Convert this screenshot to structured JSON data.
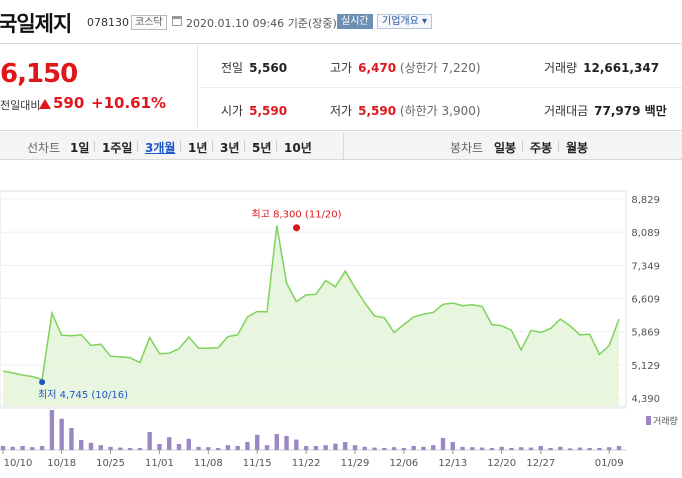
{
  "header": {
    "name": "국일제지",
    "code": "078130",
    "market": "코스닥",
    "datetime": "2020.01.10 09:46",
    "basis": "기준(장중)",
    "realtime": "실시간",
    "company_info": "기업개요 ▾"
  },
  "price": {
    "current": "6,150",
    "change_label": "전일대비",
    "change": "590",
    "change_pct": "+10.61%"
  },
  "stats": {
    "prev_label": "전일",
    "prev": "5,560",
    "high_label": "고가",
    "high": "6,470",
    "upper_limit": "(상한가 7,220)",
    "volume_label": "거래량",
    "volume": "12,661,347",
    "open_label": "시가",
    "open": "5,590",
    "low_label": "저가",
    "low": "5,590",
    "lower_limit": "(하한가 3,900)",
    "amount_label": "거래대금",
    "amount": "77,979 백만"
  },
  "ranges": {
    "line_label": "선차트",
    "line": [
      "1일",
      "1주일",
      "3개월",
      "1년",
      "3년",
      "5년",
      "10년"
    ],
    "active": "3개월",
    "candle_label": "봉차트",
    "candle": [
      "일봉",
      "주봉",
      "월봉"
    ]
  },
  "colors": {
    "up": "#e0161b",
    "line": "#7fd25a",
    "fill": "#e6f5dc",
    "volume": "#9b87c4",
    "low": "#1d56c8"
  },
  "chart_data": {
    "type": "area",
    "x": [
      "10/10",
      "10/11",
      "10/14",
      "10/15",
      "10/16",
      "10/17",
      "10/18",
      "10/21",
      "10/22",
      "10/23",
      "10/24",
      "10/25",
      "10/28",
      "10/29",
      "10/30",
      "10/31",
      "11/01",
      "11/04",
      "11/05",
      "11/06",
      "11/07",
      "11/08",
      "11/11",
      "11/12",
      "11/13",
      "11/14",
      "11/15",
      "11/18",
      "11/19",
      "11/20",
      "11/21",
      "11/22",
      "11/25",
      "11/26",
      "11/27",
      "11/28",
      "11/29",
      "12/02",
      "12/03",
      "12/04",
      "12/05",
      "12/06",
      "12/09",
      "12/10",
      "12/11",
      "12/12",
      "12/13",
      "12/16",
      "12/17",
      "12/18",
      "12/19",
      "12/20",
      "12/23",
      "12/24",
      "12/26",
      "12/27",
      "12/30",
      "01/02",
      "01/03",
      "01/06",
      "01/07",
      "01/08",
      "01/09",
      "01/10"
    ],
    "values": [
      4990,
      4950,
      4900,
      4870,
      4800,
      6280,
      5790,
      5780,
      5800,
      5560,
      5590,
      5320,
      5310,
      5290,
      5180,
      5740,
      5380,
      5390,
      5490,
      5750,
      5500,
      5500,
      5510,
      5760,
      5800,
      6200,
      6320,
      6310,
      8240,
      6950,
      6540,
      6690,
      6700,
      7010,
      6870,
      7220,
      6850,
      6510,
      6220,
      6180,
      5850,
      6030,
      6200,
      6260,
      6300,
      6480,
      6510,
      6450,
      6470,
      6430,
      6030,
      6000,
      5900,
      5460,
      5900,
      5850,
      5940,
      6150,
      6000,
      5800,
      5810,
      5360,
      5560,
      6150
    ],
    "volume": [
      0.1,
      0.08,
      0.1,
      0.07,
      0.1,
      1.0,
      0.78,
      0.55,
      0.25,
      0.18,
      0.12,
      0.08,
      0.06,
      0.05,
      0.05,
      0.45,
      0.15,
      0.32,
      0.15,
      0.28,
      0.08,
      0.07,
      0.05,
      0.12,
      0.1,
      0.2,
      0.38,
      0.12,
      0.4,
      0.35,
      0.26,
      0.1,
      0.1,
      0.12,
      0.16,
      0.2,
      0.12,
      0.08,
      0.06,
      0.05,
      0.07,
      0.05,
      0.1,
      0.08,
      0.12,
      0.3,
      0.2,
      0.08,
      0.07,
      0.06,
      0.05,
      0.08,
      0.05,
      0.07,
      0.06,
      0.1,
      0.05,
      0.08,
      0.04,
      0.06,
      0.05,
      0.05,
      0.07,
      0.1
    ],
    "y_ticks": [
      "8,829",
      "8,089",
      "7,349",
      "6,609",
      "5,869",
      "5,129",
      "4,390"
    ],
    "ylim": [
      4390,
      8829
    ],
    "x_ticks": [
      {
        "label": "10/10",
        "x": "10/10"
      },
      {
        "label": "10/18",
        "x": "10/18"
      },
      {
        "label": "10/25",
        "x": "10/25"
      },
      {
        "label": "11/01",
        "x": "11/01"
      },
      {
        "label": "11/08",
        "x": "11/08"
      },
      {
        "label": "11/15",
        "x": "11/15"
      },
      {
        "label": "11/22",
        "x": "11/22"
      },
      {
        "label": "11/29",
        "x": "11/29"
      },
      {
        "label": "12/06",
        "x": "12/06"
      },
      {
        "label": "12/13",
        "x": "12/13"
      },
      {
        "label": "12/20",
        "x": "12/20"
      },
      {
        "label": "12/27",
        "x": "12/27"
      },
      {
        "label": "01/09",
        "x": "01/09"
      }
    ],
    "high": {
      "label": "최고 8,300 (11/20)",
      "x": "11/20",
      "value": 8300
    },
    "low": {
      "label": "최저 4,745 (10/16)",
      "x": "10/16",
      "value": 4745
    },
    "volume_label": "거래량"
  }
}
